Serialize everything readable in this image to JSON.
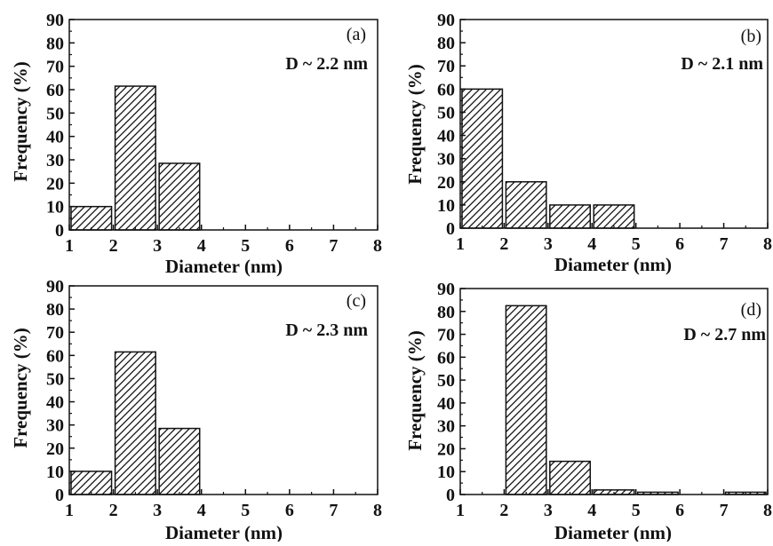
{
  "chart_data": [
    {
      "type": "bar",
      "panel_label": "(a)",
      "annotation": "D ~ 2.2 nm",
      "xlabel": "Diameter (nm)",
      "ylabel": "Frequency (%)",
      "xlim": [
        1,
        8
      ],
      "ylim": [
        0,
        90
      ],
      "xticks": [
        "1",
        "2",
        "3",
        "4",
        "5",
        "6",
        "7",
        "8"
      ],
      "yticks": [
        "0",
        "10",
        "20",
        "30",
        "40",
        "50",
        "60",
        "70",
        "80",
        "90"
      ],
      "bins": [
        [
          1,
          2
        ],
        [
          2,
          3
        ],
        [
          3,
          4
        ]
      ],
      "values": [
        10,
        61.5,
        28.5
      ],
      "bar_pattern": "diagonal-hatch"
    },
    {
      "type": "bar",
      "panel_label": "(b)",
      "annotation": "D ~ 2.1 nm",
      "xlabel": "Diameter (nm)",
      "ylabel": "Frequency (%)",
      "xlim": [
        1,
        8
      ],
      "ylim": [
        0,
        90
      ],
      "xticks": [
        "1",
        "2",
        "3",
        "4",
        "5",
        "6",
        "7",
        "8"
      ],
      "yticks": [
        "0",
        "10",
        "20",
        "30",
        "40",
        "50",
        "60",
        "70",
        "80",
        "90"
      ],
      "bins": [
        [
          1,
          2
        ],
        [
          2,
          3
        ],
        [
          3,
          4
        ],
        [
          4,
          5
        ]
      ],
      "values": [
        60,
        20,
        10,
        10
      ],
      "bar_pattern": "diagonal-hatch"
    },
    {
      "type": "bar",
      "panel_label": "(c)",
      "annotation": "D ~ 2.3 nm",
      "xlabel": "Diameter (nm)",
      "ylabel": "Frequency (%)",
      "xlim": [
        1,
        8
      ],
      "ylim": [
        0,
        90
      ],
      "xticks": [
        "1",
        "2",
        "3",
        "4",
        "5",
        "6",
        "7",
        "8"
      ],
      "yticks": [
        "0",
        "10",
        "20",
        "30",
        "40",
        "50",
        "60",
        "70",
        "80",
        "90"
      ],
      "bins": [
        [
          1,
          2
        ],
        [
          2,
          3
        ],
        [
          3,
          4
        ]
      ],
      "values": [
        10,
        61.5,
        28.5
      ],
      "bar_pattern": "diagonal-hatch"
    },
    {
      "type": "bar",
      "panel_label": "(d)",
      "annotation": "D ~ 2.7 nm",
      "xlabel": "Diameter (nm)",
      "ylabel": "Frequency (%)",
      "xlim": [
        1,
        8
      ],
      "ylim": [
        0,
        90
      ],
      "xticks": [
        "1",
        "2",
        "3",
        "4",
        "5",
        "6",
        "7",
        "8"
      ],
      "yticks": [
        "0",
        "10",
        "20",
        "30",
        "40",
        "50",
        "60",
        "70",
        "80",
        "90"
      ],
      "bins": [
        [
          2,
          3
        ],
        [
          3,
          4
        ],
        [
          4,
          5
        ],
        [
          5,
          6
        ],
        [
          7,
          8
        ]
      ],
      "values": [
        82.5,
        14.5,
        2,
        1,
        1
      ],
      "bar_pattern": "diagonal-hatch"
    }
  ],
  "colors": {
    "axis": "#111111",
    "bar_edge": "#111111",
    "hatch": "#111111",
    "background": "#ffffff"
  }
}
